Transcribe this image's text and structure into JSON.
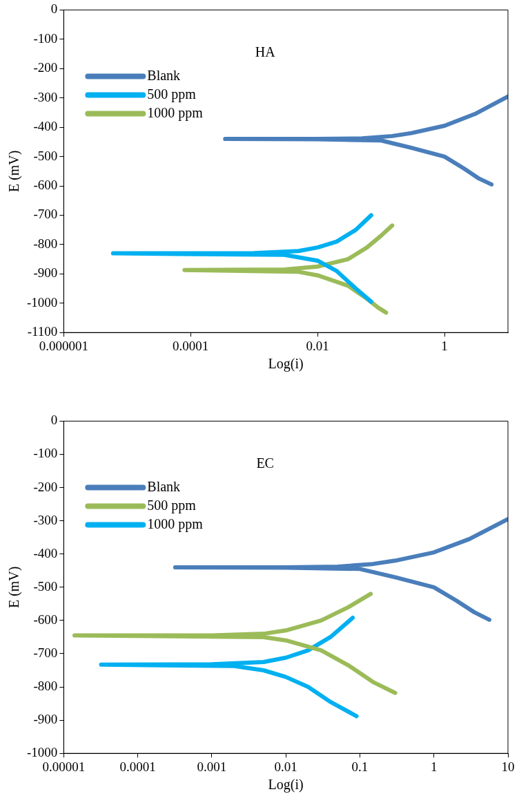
{
  "chart_data": [
    {
      "type": "line",
      "title": "HA",
      "xlabel": "Log(i)",
      "ylabel": "E (mV)",
      "log": "x",
      "xlim": [
        1e-06,
        10
      ],
      "xticks": [
        {
          "value": 1e-06,
          "label": "0.000001"
        },
        0.0001,
        0.01,
        1
      ],
      "ylim": [
        -1100,
        0
      ],
      "yticks": [
        -1100,
        -1000,
        -900,
        -800,
        -700,
        -600,
        -500,
        -400,
        -300,
        -200,
        -100,
        0
      ],
      "grid": false,
      "legend": "top left",
      "marker": "none",
      "line_style": "solid",
      "series": [
        {
          "name": "Blank",
          "color": "#4a7ebb",
          "x": [
            5.5,
            3.5,
            2,
            1,
            0.3,
            0.1,
            0.01,
            0.00035,
            0.01,
            0.05,
            0.15,
            0.3,
            1,
            3,
            10
          ],
          "values": [
            -595,
            -575,
            -540,
            -500,
            -470,
            -445,
            -441,
            -440,
            -440,
            -438,
            -430,
            -420,
            -395,
            -355,
            -295
          ]
        },
        {
          "name": "500 ppm",
          "color": "#00b0f0",
          "x": [
            0.07,
            0.04,
            0.02,
            0.01,
            0.003,
            6e-06,
            0.001,
            0.005,
            0.01,
            0.02,
            0.04,
            0.07
          ],
          "values": [
            -995,
            -950,
            -890,
            -855,
            -835,
            -830,
            -829,
            -822,
            -810,
            -790,
            -750,
            -700
          ]
        },
        {
          "name": "1000 ppm",
          "color": "#9bbb59",
          "x": [
            0.12,
            0.09,
            0.06,
            0.03,
            0.01,
            0.005,
            8e-05,
            0.003,
            0.01,
            0.03,
            0.06,
            0.1,
            0.15
          ],
          "values": [
            -1032,
            -1015,
            -985,
            -940,
            -905,
            -893,
            -887,
            -885,
            -875,
            -850,
            -810,
            -770,
            -735
          ]
        }
      ]
    },
    {
      "type": "line",
      "title": "EC",
      "xlabel": "Log(i)",
      "ylabel": "E (mV)",
      "log": "x",
      "xlim": [
        1e-05,
        10
      ],
      "xticks": [
        {
          "value": 1e-05,
          "label": "0.00001"
        },
        0.0001,
        0.001,
        0.01,
        0.1,
        1,
        10
      ],
      "ylim": [
        -1000,
        0
      ],
      "yticks": [
        -1000,
        -900,
        -800,
        -700,
        -600,
        -500,
        -400,
        -300,
        -200,
        -100,
        0
      ],
      "grid": false,
      "legend": "top left",
      "marker": "none",
      "line_style": "solid",
      "series": [
        {
          "name": "Blank",
          "color": "#4a7ebb",
          "x": [
            5.6,
            3.5,
            2,
            1,
            0.3,
            0.1,
            0.01,
            0.00032,
            0.01,
            0.05,
            0.15,
            0.3,
            1,
            3,
            10
          ],
          "values": [
            -598,
            -575,
            -540,
            -500,
            -470,
            -445,
            -441,
            -440,
            -440,
            -438,
            -430,
            -420,
            -395,
            -355,
            -295
          ]
        },
        {
          "name": "500 ppm",
          "color": "#9bbb59",
          "x": [
            0.3,
            0.15,
            0.07,
            0.03,
            0.01,
            0.005,
            1.4e-05,
            0.001,
            0.005,
            0.01,
            0.03,
            0.07,
            0.14
          ],
          "values": [
            -818,
            -785,
            -735,
            -690,
            -660,
            -650,
            -645,
            -645,
            -640,
            -630,
            -600,
            -560,
            -520
          ]
        },
        {
          "name": "1000 ppm",
          "color": "#00b0f0",
          "x": [
            0.09,
            0.04,
            0.02,
            0.01,
            0.005,
            0.002,
            3.2e-05,
            0.001,
            0.005,
            0.01,
            0.02,
            0.04,
            0.08
          ],
          "values": [
            -888,
            -845,
            -800,
            -770,
            -750,
            -737,
            -733,
            -732,
            -725,
            -712,
            -690,
            -650,
            -592
          ]
        }
      ]
    }
  ]
}
